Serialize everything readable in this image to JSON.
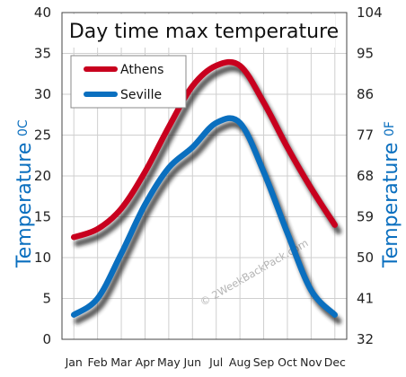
{
  "chart_data": {
    "type": "line",
    "title": "Day time max temperature",
    "categories": [
      "Jan",
      "Feb",
      "Mar",
      "Apr",
      "May",
      "Jun",
      "Jul",
      "Aug",
      "Sep",
      "Oct",
      "Nov",
      "Dec"
    ],
    "series": [
      {
        "name": "Athens",
        "color": "#c8001e",
        "values": [
          12.5,
          13.5,
          16,
          20.5,
          26,
          31,
          33.5,
          33.5,
          29,
          23.5,
          18.5,
          14
        ]
      },
      {
        "name": "Seville",
        "color": "#0a6fbf",
        "values": [
          3,
          5,
          10.5,
          16.5,
          21,
          23.5,
          26.5,
          26.5,
          20.5,
          13,
          6,
          3
        ]
      }
    ],
    "ylabel_left": "Temperature",
    "ylabel_left_unit": "0C",
    "ylabel_right": "Temperature",
    "ylabel_right_unit": "0F",
    "ylim": [
      0,
      40
    ],
    "yticks_left": [
      "0",
      "5",
      "10",
      "15",
      "20",
      "25",
      "30",
      "35",
      "40"
    ],
    "yticks_right": [
      "32",
      "41",
      "50",
      "59",
      "68",
      "77",
      "86",
      "95",
      "104"
    ],
    "grid": true,
    "legend_position": "top-left",
    "watermark": "© 2WeekBackPack.com"
  }
}
